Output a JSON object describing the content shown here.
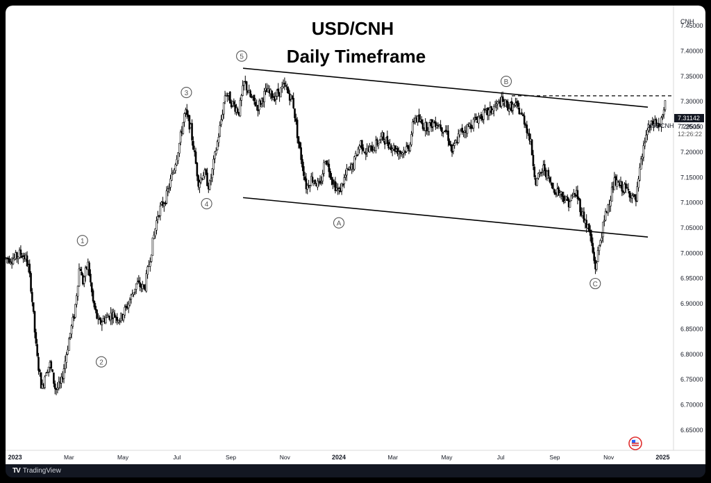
{
  "app": {
    "brand": "TradingView",
    "brand_logo": "TV"
  },
  "chart_data": {
    "type": "candlestick",
    "title": "USD/CNH",
    "subtitle": "Daily Timeframe",
    "currency_label": "CNH",
    "symbol": "USDCNH",
    "price_tags": {
      "high_line": "7.31142",
      "last_price": "7.29515",
      "countdown": "12:26:22"
    },
    "high_line_value": 7.31142,
    "last_price_value": 7.29515,
    "ylim": [
      6.61,
      7.49
    ],
    "y_ticks": [
      "7.45000",
      "7.40000",
      "7.35000",
      "7.30000",
      "7.25000",
      "7.20000",
      "7.15000",
      "7.10000",
      "7.05000",
      "7.00000",
      "6.95000",
      "6.90000",
      "6.85000",
      "6.80000",
      "6.75000",
      "6.70000",
      "6.65000"
    ],
    "x_ticks": [
      {
        "label": "2023",
        "bold": true
      },
      {
        "label": "Mar",
        "bold": false
      },
      {
        "label": "May",
        "bold": false
      },
      {
        "label": "Jul",
        "bold": false
      },
      {
        "label": "Sep",
        "bold": false
      },
      {
        "label": "Nov",
        "bold": false
      },
      {
        "label": "2024",
        "bold": true
      },
      {
        "label": "Mar",
        "bold": false
      },
      {
        "label": "May",
        "bold": false
      },
      {
        "label": "Jul",
        "bold": false
      },
      {
        "label": "Sep",
        "bold": false
      },
      {
        "label": "Nov",
        "bold": false
      },
      {
        "label": "2025",
        "bold": true
      }
    ],
    "x_tick_months": [
      0,
      2,
      4,
      6,
      8,
      10,
      12,
      14,
      16,
      18,
      20,
      22,
      24
    ],
    "x_range_months": [
      -0.35,
      24.4
    ],
    "price_path": [
      [
        -0.35,
        6.99
      ],
      [
        0.0,
        6.99
      ],
      [
        0.2,
        7.0
      ],
      [
        0.4,
        6.99
      ],
      [
        0.5,
        6.97
      ],
      [
        0.6,
        6.93
      ],
      [
        0.8,
        6.8
      ],
      [
        1.0,
        6.73
      ],
      [
        1.15,
        6.77
      ],
      [
        1.3,
        6.78
      ],
      [
        1.5,
        6.73
      ],
      [
        1.7,
        6.74
      ],
      [
        2.0,
        6.83
      ],
      [
        2.2,
        6.88
      ],
      [
        2.4,
        6.98
      ],
      [
        2.5,
        6.94
      ],
      [
        2.7,
        6.98
      ],
      [
        2.9,
        6.9
      ],
      [
        3.1,
        6.86
      ],
      [
        3.3,
        6.87
      ],
      [
        3.6,
        6.88
      ],
      [
        3.9,
        6.87
      ],
      [
        4.2,
        6.9
      ],
      [
        4.5,
        6.94
      ],
      [
        4.8,
        6.93
      ],
      [
        5.1,
        7.02
      ],
      [
        5.3,
        7.08
      ],
      [
        5.6,
        7.11
      ],
      [
        5.9,
        7.17
      ],
      [
        6.1,
        7.22
      ],
      [
        6.3,
        7.28
      ],
      [
        6.5,
        7.25
      ],
      [
        6.8,
        7.14
      ],
      [
        7.0,
        7.16
      ],
      [
        7.2,
        7.13
      ],
      [
        7.4,
        7.19
      ],
      [
        7.6,
        7.25
      ],
      [
        7.8,
        7.32
      ],
      [
        8.0,
        7.3
      ],
      [
        8.3,
        7.28
      ],
      [
        8.5,
        7.34
      ],
      [
        8.7,
        7.31
      ],
      [
        9.0,
        7.29
      ],
      [
        9.3,
        7.32
      ],
      [
        9.6,
        7.31
      ],
      [
        10.0,
        7.33
      ],
      [
        10.3,
        7.3
      ],
      [
        10.5,
        7.22
      ],
      [
        10.8,
        7.13
      ],
      [
        11.0,
        7.15
      ],
      [
        11.3,
        7.13
      ],
      [
        11.5,
        7.19
      ],
      [
        11.8,
        7.14
      ],
      [
        12.0,
        7.12
      ],
      [
        12.3,
        7.16
      ],
      [
        12.5,
        7.17
      ],
      [
        12.8,
        7.22
      ],
      [
        13.0,
        7.2
      ],
      [
        13.3,
        7.21
      ],
      [
        13.6,
        7.23
      ],
      [
        14.0,
        7.21
      ],
      [
        14.3,
        7.2
      ],
      [
        14.6,
        7.21
      ],
      [
        14.8,
        7.27
      ],
      [
        15.2,
        7.25
      ],
      [
        15.6,
        7.26
      ],
      [
        16.0,
        7.24
      ],
      [
        16.2,
        7.2
      ],
      [
        16.5,
        7.24
      ],
      [
        16.8,
        7.25
      ],
      [
        17.2,
        7.27
      ],
      [
        17.6,
        7.28
      ],
      [
        18.0,
        7.3
      ],
      [
        18.3,
        7.29
      ],
      [
        18.6,
        7.29
      ],
      [
        18.9,
        7.26
      ],
      [
        19.1,
        7.22
      ],
      [
        19.3,
        7.14
      ],
      [
        19.6,
        7.17
      ],
      [
        19.9,
        7.13
      ],
      [
        20.2,
        7.12
      ],
      [
        20.5,
        7.1
      ],
      [
        20.8,
        7.12
      ],
      [
        21.0,
        7.08
      ],
      [
        21.3,
        7.04
      ],
      [
        21.5,
        6.97
      ],
      [
        21.7,
        7.03
      ],
      [
        21.9,
        7.08
      ],
      [
        22.2,
        7.14
      ],
      [
        22.5,
        7.13
      ],
      [
        22.8,
        7.12
      ],
      [
        23.0,
        7.1
      ],
      [
        23.2,
        7.18
      ],
      [
        23.4,
        7.24
      ],
      [
        23.7,
        7.26
      ],
      [
        23.9,
        7.25
      ],
      [
        24.0,
        7.27
      ],
      [
        24.1,
        7.295
      ]
    ],
    "trendlines": [
      {
        "name": "upper-trendline",
        "from": [
          8.45,
          7.366
        ],
        "to": [
          23.45,
          7.289
        ]
      },
      {
        "name": "lower-trendline",
        "from": [
          8.45,
          7.11
        ],
        "to": [
          23.45,
          7.032
        ]
      }
    ],
    "wave_labels": [
      {
        "label": "1",
        "month": 2.5,
        "price": 7.025
      },
      {
        "label": "2",
        "month": 3.2,
        "price": 6.785
      },
      {
        "label": "3",
        "month": 6.35,
        "price": 7.318
      },
      {
        "label": "4",
        "month": 7.1,
        "price": 7.098
      },
      {
        "label": "5",
        "month": 8.4,
        "price": 7.39
      },
      {
        "label": "A",
        "month": 12.0,
        "price": 7.06
      },
      {
        "label": "B",
        "month": 18.2,
        "price": 7.34
      },
      {
        "label": "C",
        "month": 21.5,
        "price": 6.94
      }
    ]
  }
}
